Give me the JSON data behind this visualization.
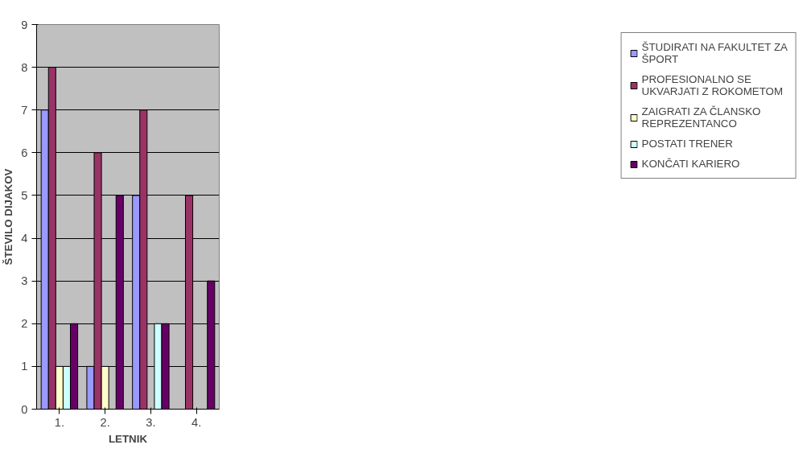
{
  "chart_data": {
    "type": "bar",
    "xlabel": "LETNIK",
    "ylabel": "ŠTEVILO DIJAKOV",
    "categories": [
      "1.",
      "2.",
      "3.",
      "4."
    ],
    "series": [
      {
        "name": "ŠTUDIRATI NA FAKULTET ZA ŠPORT",
        "color": "#9999ff",
        "values": [
          7,
          1,
          5,
          0
        ]
      },
      {
        "name": "PROFESIONALNO SE UKVARJATI Z ROKOMETOM",
        "color": "#993366",
        "values": [
          8,
          6,
          7,
          5
        ]
      },
      {
        "name": "ZAIGRATI ZA ČLANSKO REPREZENTANCO",
        "color": "#ffffcc",
        "values": [
          1,
          1,
          0,
          0
        ]
      },
      {
        "name": "POSTATI TRENER",
        "color": "#ccffff",
        "values": [
          1,
          0,
          2,
          0
        ]
      },
      {
        "name": "KONČATI KARIERO",
        "color": "#660066",
        "values": [
          2,
          5,
          2,
          3
        ]
      }
    ],
    "ylim": [
      0,
      9
    ],
    "yticks": [
      0,
      1,
      2,
      3,
      4,
      5,
      6,
      7,
      8,
      9
    ],
    "grid": "y",
    "legend": "right"
  }
}
